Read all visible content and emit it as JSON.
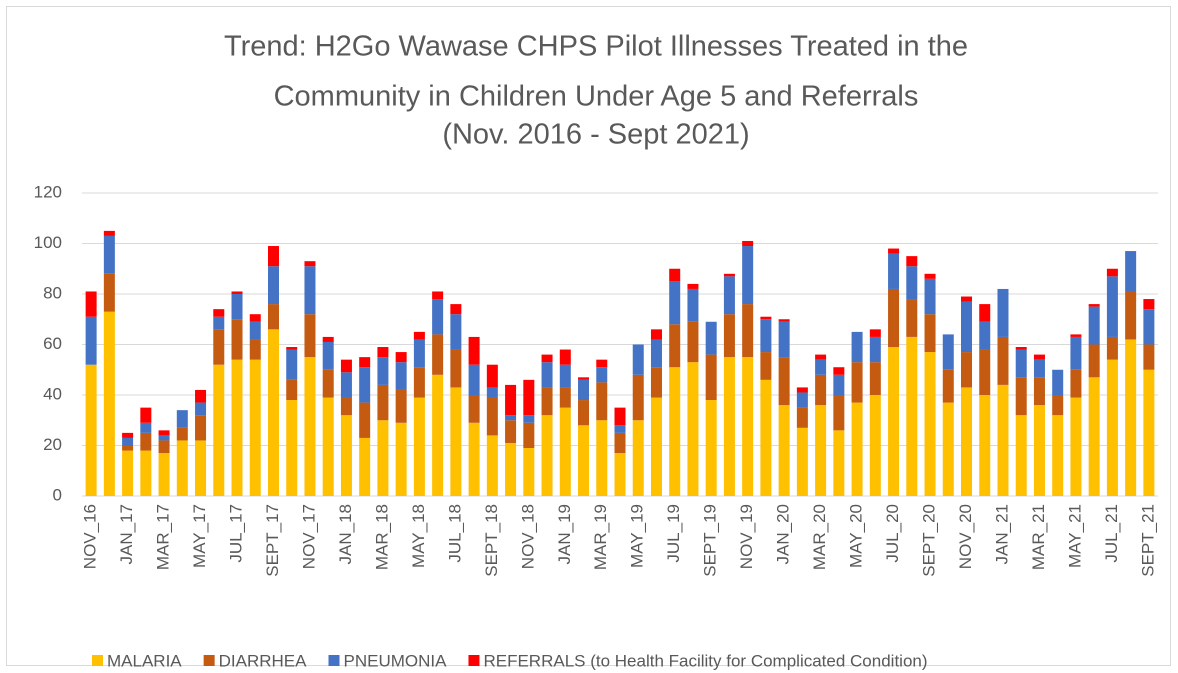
{
  "chart_data": {
    "type": "stacked_bar",
    "title": [
      "Trend: H2Go Wawase CHPS Pilot Illnesses Treated in the",
      "Community in Children Under Age 5 and Referrals",
      "(Nov. 2016 - Sept  2021)"
    ],
    "categories": [
      "NOV_16",
      null,
      "JAN_17",
      null,
      "MAR_17",
      null,
      "MAY_17",
      null,
      "JUL_17",
      null,
      "SEPT_17",
      null,
      "NOV_17",
      null,
      "JAN_18",
      null,
      "MAR_18",
      null,
      "MAY_18",
      null,
      "JUL_18",
      null,
      "SEPT_18",
      null,
      "NOV_18",
      null,
      "JAN_19",
      null,
      "MAR_19",
      null,
      "MAY_19",
      null,
      "JUL_19",
      null,
      "SEPT_19",
      null,
      "NOV_19",
      null,
      "JAN_20",
      null,
      "MAR_20",
      null,
      "MAY_20",
      null,
      "JUL_20",
      null,
      "SEPT_20",
      null,
      "NOV_20",
      null,
      "JAN_21",
      null,
      "MAR_21",
      null,
      "MAY_21",
      null,
      "JUL_21",
      null,
      "SEPT_21"
    ],
    "series": [
      {
        "name": "MALARIA",
        "color": "#ffc000",
        "values": [
          52,
          73,
          18,
          18,
          17,
          22,
          22,
          52,
          54,
          54,
          66,
          38,
          55,
          39,
          32,
          23,
          30,
          29,
          39,
          48,
          43,
          29,
          24,
          21,
          19,
          32,
          35,
          28,
          30,
          17,
          30,
          39,
          51,
          53,
          38,
          55,
          55,
          46,
          36,
          27,
          36,
          26,
          37,
          40,
          59,
          63,
          57,
          37,
          43,
          40,
          44,
          32,
          36,
          32,
          39,
          47,
          54,
          62,
          50
        ]
      },
      {
        "name": "DIARRHEA",
        "color": "#c55a11",
        "values": [
          0,
          15,
          2,
          7,
          5,
          5,
          10,
          14,
          16,
          8,
          10,
          8,
          17,
          11,
          7,
          14,
          14,
          13,
          12,
          16,
          15,
          11,
          15,
          9,
          10,
          11,
          8,
          10,
          15,
          8,
          18,
          12,
          17,
          16,
          18,
          17,
          21,
          11,
          19,
          8,
          12,
          14,
          16,
          13,
          23,
          15,
          15,
          13,
          14,
          18,
          19,
          15,
          11,
          8,
          11,
          13,
          9,
          19,
          10
        ]
      },
      {
        "name": "PNEUMONIA",
        "color": "#4472c4",
        "values": [
          19,
          15,
          3,
          4,
          2,
          7,
          5,
          5,
          10,
          7,
          15,
          12,
          19,
          11,
          10,
          14,
          11,
          11,
          11,
          14,
          14,
          12,
          4,
          2,
          3,
          10,
          9,
          8,
          6,
          3,
          12,
          11,
          17,
          13,
          13,
          15,
          23,
          13,
          14,
          6,
          6,
          8,
          12,
          10,
          14,
          13,
          14,
          14,
          20,
          11,
          19,
          11,
          7,
          10,
          13,
          15,
          24,
          16,
          14
        ]
      },
      {
        "name": "REFERRALS (to Health Facility for Complicated Condition)",
        "color": "#ff0000",
        "values": [
          10,
          2,
          2,
          6,
          2,
          0,
          5,
          3,
          1,
          3,
          8,
          1,
          2,
          2,
          5,
          4,
          4,
          4,
          3,
          3,
          4,
          11,
          9,
          12,
          14,
          3,
          6,
          1,
          3,
          7,
          0,
          4,
          5,
          2,
          0,
          1,
          2,
          1,
          1,
          2,
          2,
          3,
          0,
          3,
          2,
          4,
          2,
          0,
          2,
          7,
          0,
          1,
          2,
          0,
          1,
          1,
          3,
          0,
          4
        ]
      }
    ],
    "ylim": [
      0,
      120
    ],
    "yticks": [
      0,
      20,
      40,
      60,
      80,
      100,
      120
    ],
    "grid": true
  }
}
